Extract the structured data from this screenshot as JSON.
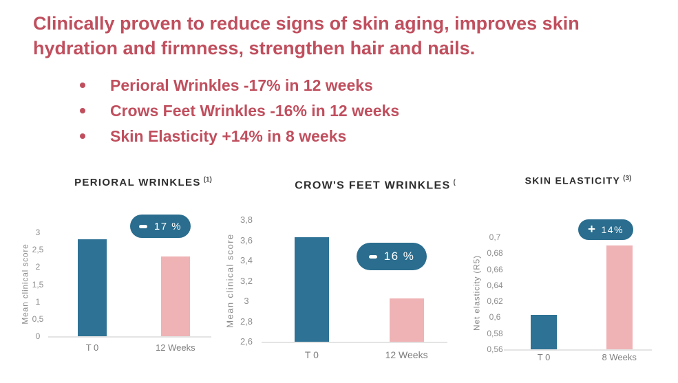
{
  "header": {
    "line1": "Clinically proven to reduce signs of skin aging, improves skin",
    "line2": "hydration and firmness, strengthen hair and nails."
  },
  "bullets": [
    "Perioral Wrinkles -17% in 12 weeks",
    "Crows Feet Wrinkles -16% in 12 weeks",
    "Skin Elasticity +14% in 8 weeks"
  ],
  "colors": {
    "heading_red": "#c04f5e",
    "bar_t0_blue": "#2e7295",
    "bar_followup_pink": "#efb3b5",
    "badge_teal": "#2a6d8e",
    "axis_gray": "#8e8e8e",
    "title_dark": "#2e2e2e"
  },
  "chart_data": [
    {
      "type": "bar",
      "title": "PERIORAL WRINKLES",
      "ref": "(1)",
      "ylabel": "Mean clinical score",
      "categories": [
        "T 0",
        "12 Weeks"
      ],
      "values": [
        2.8,
        2.3
      ],
      "ylim": [
        0,
        3
      ],
      "yticks": [
        "0",
        "0,5",
        "1",
        "1,5",
        "2",
        "2,5",
        "3"
      ],
      "grid": false,
      "badge": {
        "sign": "-",
        "label": "17 %"
      }
    },
    {
      "type": "bar",
      "title": "CROW'S FEET WRINKLES",
      "ref": "(",
      "ylabel": "Mean clinical score",
      "categories": [
        "T 0",
        "12 Weeks"
      ],
      "values": [
        3.63,
        3.03
      ],
      "ylim": [
        2.6,
        3.8
      ],
      "yticks": [
        "2,6",
        "2,8",
        "3",
        "3,2",
        "3,4",
        "3,6",
        "3,8"
      ],
      "grid": false,
      "badge": {
        "sign": "-",
        "label": "16 %"
      }
    },
    {
      "type": "bar",
      "title": "SKIN ELASTICITY",
      "ref": "(3)",
      "ylabel": "Net elasticity (R5)",
      "categories": [
        "T 0",
        "8 Weeks"
      ],
      "values": [
        0.603,
        0.69
      ],
      "ylim": [
        0.56,
        0.7
      ],
      "yticks": [
        "0,56",
        "0,58",
        "0,6",
        "0,62",
        "0,64",
        "0,66",
        "0,68",
        "0,7"
      ],
      "grid": false,
      "badge": {
        "sign": "+",
        "label": "14%"
      }
    }
  ]
}
